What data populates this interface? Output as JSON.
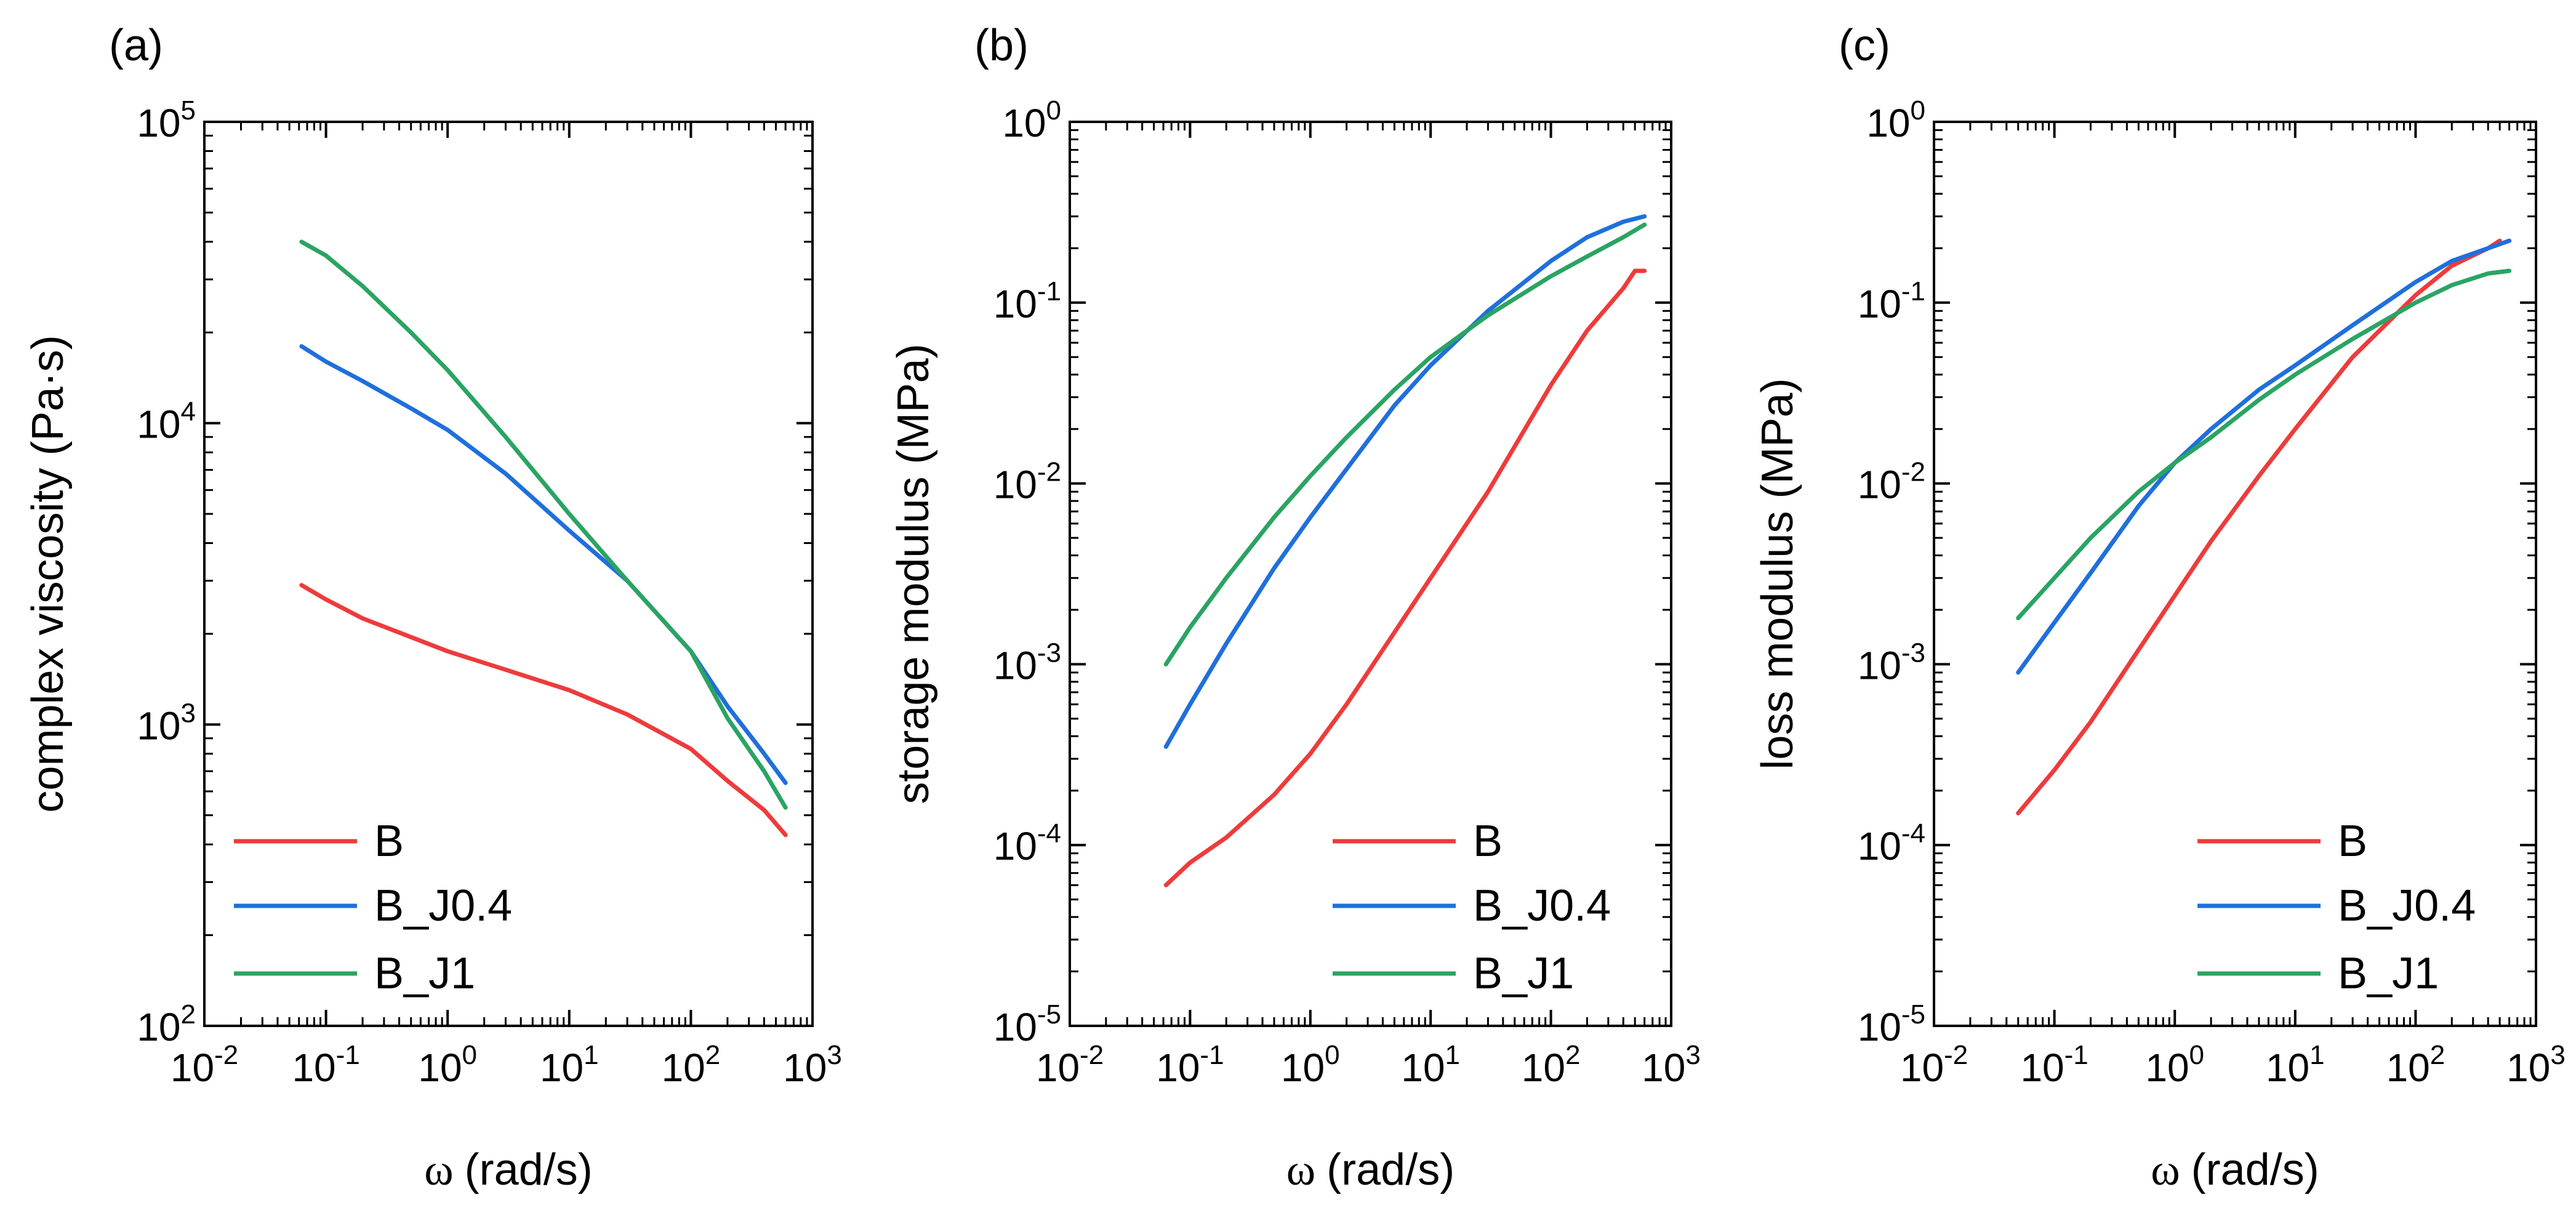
{
  "figure": {
    "series_colors": {
      "B": "#ee3b3b",
      "B_J0.4": "#1f6fdc",
      "B_J1": "#2aa462"
    }
  },
  "chart_data": [
    {
      "type": "line",
      "panel_label": "(a)",
      "xlabel_symbol": "ω",
      "xlabel_unit": "(rad/s)",
      "ylabel": "complex viscosity (Pa·s)",
      "xscale": "log",
      "yscale": "log",
      "xlim": [
        0.01,
        1000
      ],
      "ylim": [
        100,
        100000
      ],
      "x_ticks": [
        {
          "base": "10",
          "exp": "-2"
        },
        {
          "base": "10",
          "exp": "-1"
        },
        {
          "base": "10",
          "exp": "0"
        },
        {
          "base": "10",
          "exp": "1"
        },
        {
          "base": "10",
          "exp": "2"
        },
        {
          "base": "10",
          "exp": "3"
        }
      ],
      "y_ticks": [
        {
          "base": "10",
          "exp": "2"
        },
        {
          "base": "10",
          "exp": "3"
        },
        {
          "base": "10",
          "exp": "4"
        },
        {
          "base": "10",
          "exp": "5"
        }
      ],
      "legend": {
        "position": "bottom-left",
        "entries": [
          "B",
          "B_J0.4",
          "B_J1"
        ]
      },
      "series": [
        {
          "name": "B",
          "x": [
            0.063,
            0.1,
            0.2,
            0.5,
            1,
            3,
            10,
            30,
            100,
            200,
            400,
            600
          ],
          "y": [
            2900,
            2600,
            2250,
            1950,
            1750,
            1520,
            1300,
            1080,
            830,
            650,
            520,
            430
          ]
        },
        {
          "name": "B_J0.4",
          "x": [
            0.063,
            0.1,
            0.2,
            0.5,
            1,
            3,
            10,
            30,
            100,
            200,
            400,
            600
          ],
          "y": [
            18000,
            16000,
            13800,
            11200,
            9500,
            6800,
            4400,
            3000,
            1750,
            1150,
            800,
            640
          ]
        },
        {
          "name": "B_J1",
          "x": [
            0.063,
            0.1,
            0.2,
            0.5,
            1,
            3,
            10,
            30,
            100,
            200,
            400,
            600
          ],
          "y": [
            40000,
            36000,
            28500,
            20000,
            15000,
            9000,
            5000,
            3000,
            1750,
            1050,
            700,
            530
          ]
        }
      ]
    },
    {
      "type": "line",
      "panel_label": "(b)",
      "xlabel_symbol": "ω",
      "xlabel_unit": "(rad/s)",
      "ylabel": "storage modulus (MPa)",
      "xscale": "log",
      "yscale": "log",
      "xlim": [
        0.01,
        1000
      ],
      "ylim": [
        1e-05,
        1
      ],
      "x_ticks": [
        {
          "base": "10",
          "exp": "-2"
        },
        {
          "base": "10",
          "exp": "-1"
        },
        {
          "base": "10",
          "exp": "0"
        },
        {
          "base": "10",
          "exp": "1"
        },
        {
          "base": "10",
          "exp": "2"
        },
        {
          "base": "10",
          "exp": "3"
        }
      ],
      "y_ticks": [
        {
          "base": "10",
          "exp": "-5"
        },
        {
          "base": "10",
          "exp": "-4"
        },
        {
          "base": "10",
          "exp": "-3"
        },
        {
          "base": "10",
          "exp": "-2"
        },
        {
          "base": "10",
          "exp": "-1"
        },
        {
          "base": "10",
          "exp": "0"
        }
      ],
      "legend": {
        "position": "bottom-right",
        "entries": [
          "B",
          "B_J0.4",
          "B_J1"
        ]
      },
      "series": [
        {
          "name": "B",
          "x": [
            0.063,
            0.1,
            0.2,
            0.5,
            1,
            2,
            5,
            10,
            30,
            100,
            200,
            400,
            500,
            600
          ],
          "y": [
            6e-05,
            8e-05,
            0.00011,
            0.00019,
            0.00032,
            0.0006,
            0.0015,
            0.003,
            0.009,
            0.035,
            0.07,
            0.12,
            0.15,
            0.15
          ]
        },
        {
          "name": "B_J0.4",
          "x": [
            0.063,
            0.1,
            0.2,
            0.5,
            1,
            2,
            5,
            10,
            30,
            100,
            200,
            400,
            600
          ],
          "y": [
            0.00035,
            0.0006,
            0.0013,
            0.0034,
            0.0065,
            0.012,
            0.027,
            0.045,
            0.09,
            0.17,
            0.23,
            0.28,
            0.3
          ]
        },
        {
          "name": "B_J1",
          "x": [
            0.063,
            0.1,
            0.2,
            0.5,
            1,
            2,
            5,
            10,
            30,
            100,
            200,
            400,
            600
          ],
          "y": [
            0.001,
            0.0016,
            0.003,
            0.0065,
            0.011,
            0.018,
            0.033,
            0.05,
            0.085,
            0.14,
            0.18,
            0.23,
            0.27
          ]
        }
      ]
    },
    {
      "type": "line",
      "panel_label": "(c)",
      "xlabel_symbol": "ω",
      "xlabel_unit": "(rad/s)",
      "ylabel": "loss modulus (MPa)",
      "xscale": "log",
      "yscale": "log",
      "xlim": [
        0.01,
        1000
      ],
      "ylim": [
        1e-05,
        1
      ],
      "x_ticks": [
        {
          "base": "10",
          "exp": "-2"
        },
        {
          "base": "10",
          "exp": "-1"
        },
        {
          "base": "10",
          "exp": "0"
        },
        {
          "base": "10",
          "exp": "1"
        },
        {
          "base": "10",
          "exp": "2"
        },
        {
          "base": "10",
          "exp": "3"
        }
      ],
      "y_ticks": [
        {
          "base": "10",
          "exp": "-5"
        },
        {
          "base": "10",
          "exp": "-4"
        },
        {
          "base": "10",
          "exp": "-3"
        },
        {
          "base": "10",
          "exp": "-2"
        },
        {
          "base": "10",
          "exp": "-1"
        },
        {
          "base": "10",
          "exp": "0"
        }
      ],
      "legend": {
        "position": "bottom-right",
        "entries": [
          "B",
          "B_J0.4",
          "B_J1"
        ]
      },
      "series": [
        {
          "name": "B",
          "x": [
            0.05,
            0.1,
            0.2,
            0.5,
            1,
            2,
            5,
            10,
            30,
            100,
            200,
            400,
            500
          ],
          "y": [
            0.00015,
            0.00026,
            0.00048,
            0.0012,
            0.0024,
            0.0048,
            0.011,
            0.02,
            0.05,
            0.11,
            0.16,
            0.2,
            0.22
          ]
        },
        {
          "name": "B_J0.4",
          "x": [
            0.05,
            0.1,
            0.2,
            0.5,
            1,
            2,
            5,
            10,
            30,
            100,
            200,
            400,
            600
          ],
          "y": [
            0.0009,
            0.0017,
            0.0032,
            0.0075,
            0.013,
            0.02,
            0.033,
            0.045,
            0.075,
            0.13,
            0.17,
            0.2,
            0.22
          ]
        },
        {
          "name": "B_J1",
          "x": [
            0.05,
            0.1,
            0.2,
            0.5,
            1,
            2,
            5,
            10,
            30,
            100,
            200,
            400,
            600
          ],
          "y": [
            0.0018,
            0.003,
            0.005,
            0.009,
            0.013,
            0.018,
            0.029,
            0.04,
            0.063,
            0.1,
            0.125,
            0.145,
            0.15
          ]
        }
      ]
    }
  ]
}
